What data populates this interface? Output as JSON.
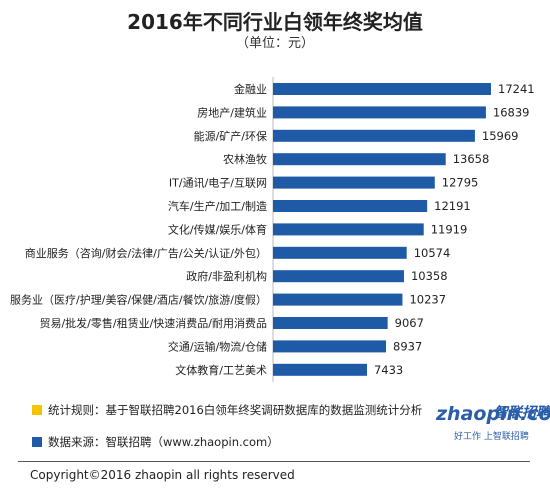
{
  "chart_data": {
    "type": "bar",
    "orientation": "horizontal",
    "title": "2016年不同行业白领年终奖均值",
    "subtitle": "（单位：元）",
    "categories": [
      "金融业",
      "房地产/建筑业",
      "能源/矿产/环保",
      "农林渔牧",
      "IT/通讯/电子/互联网",
      "汽车/生产/加工/制造",
      "文化/传媒/娱乐/体育",
      "商业服务（咨询/财会/法律/广告/公关/认证/外包）",
      "政府/非盈利机构",
      "服务业（医疗/护理/美容/保健/酒店/餐饮/旅游/度假）",
      "贸易/批发/零售/租赁业/快速消费品/耐用消费品",
      "交通/运输/物流/仓储",
      "文体教育/工艺美术"
    ],
    "values": [
      17241,
      16839,
      15969,
      13658,
      12795,
      12191,
      11919,
      10574,
      10358,
      10237,
      9067,
      8937,
      7433
    ],
    "value_labels": [
      "17241",
      "16839",
      "15969",
      "13658",
      "12795",
      "12191",
      "11919",
      "10574",
      "10358",
      "10237",
      "9067",
      "8937",
      "7433"
    ],
    "xlim": [
      0,
      17241
    ],
    "bar_color": "#1f5aa6",
    "grid": false,
    "axis_visible": false
  },
  "notes": [
    {
      "text": "统计规则：基于智联招聘2016白领年终奖调研数据库的数据监测统计分析",
      "color": "#f5c400"
    },
    {
      "text": "数据来源：智联招聘（www.zhaopin.com）",
      "color": "#1f5aa6"
    }
  ],
  "logo": {
    "main": "zhaopin.com",
    "cn": "智联招聘",
    "tagline": "好工作 上智联招聘"
  },
  "copyright": "Copyright©2016 zhaopin all rights reserved"
}
